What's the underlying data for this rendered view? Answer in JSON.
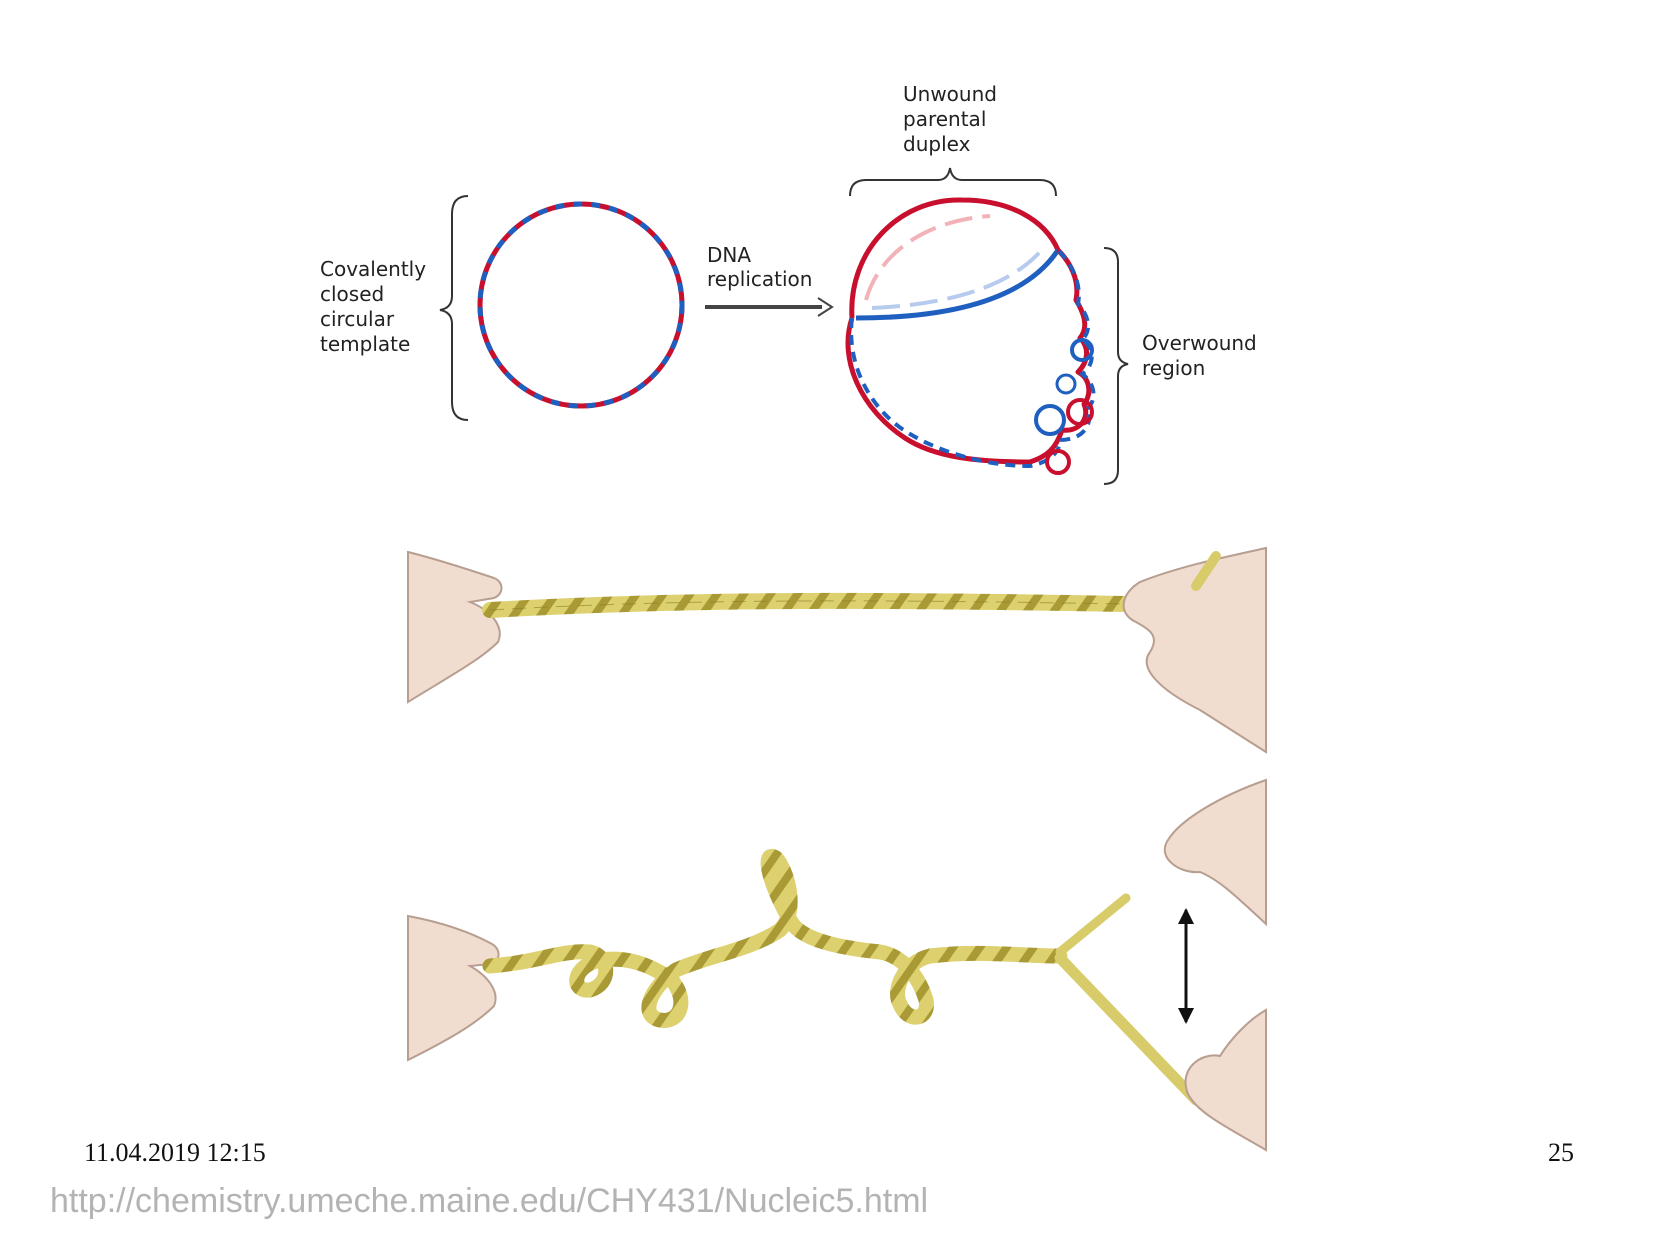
{
  "diagram": {
    "label_template_lines": [
      "Covalently",
      "closed",
      "circular",
      "template"
    ],
    "label_arrow_lines": [
      "DNA",
      "replication"
    ],
    "label_unwound_lines": [
      "Unwound",
      "parental",
      "duplex"
    ],
    "label_overwound_lines": [
      "Overwound",
      "region"
    ],
    "strand_colors": {
      "red": "#c8102e",
      "blue": "#1f5fbf",
      "light_red": "#f2b3b8",
      "light_blue": "#b7cbee"
    },
    "rope_color": "#d8cc6a",
    "hand_color": "#f1ddd0"
  },
  "footer": {
    "date": "11.04.2019 12:15",
    "page_number": "25",
    "source_url": "http://chemistry.umeche.maine.edu/CHY431/Nucleic5.html"
  }
}
